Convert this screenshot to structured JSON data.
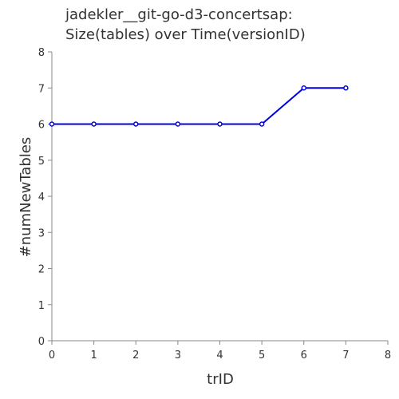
{
  "chart_data": {
    "type": "line",
    "title_lines": [
      "jadekler__git-go-d3-concertsap:",
      "Size(tables) over Time(versionID)"
    ],
    "xlabel": "trID",
    "ylabel": "#numNewTables",
    "xlim": [
      0,
      8
    ],
    "ylim": [
      0,
      8
    ],
    "xticks": [
      0,
      1,
      2,
      3,
      4,
      5,
      6,
      7,
      8
    ],
    "yticks": [
      0,
      1,
      2,
      3,
      4,
      5,
      6,
      7,
      8
    ],
    "grid": false,
    "series": [
      {
        "x": [
          0,
          1,
          2,
          3,
          4,
          5,
          6,
          7
        ],
        "y": [
          6,
          6,
          6,
          6,
          6,
          6,
          7,
          7
        ],
        "color": "#0000dd"
      }
    ]
  }
}
